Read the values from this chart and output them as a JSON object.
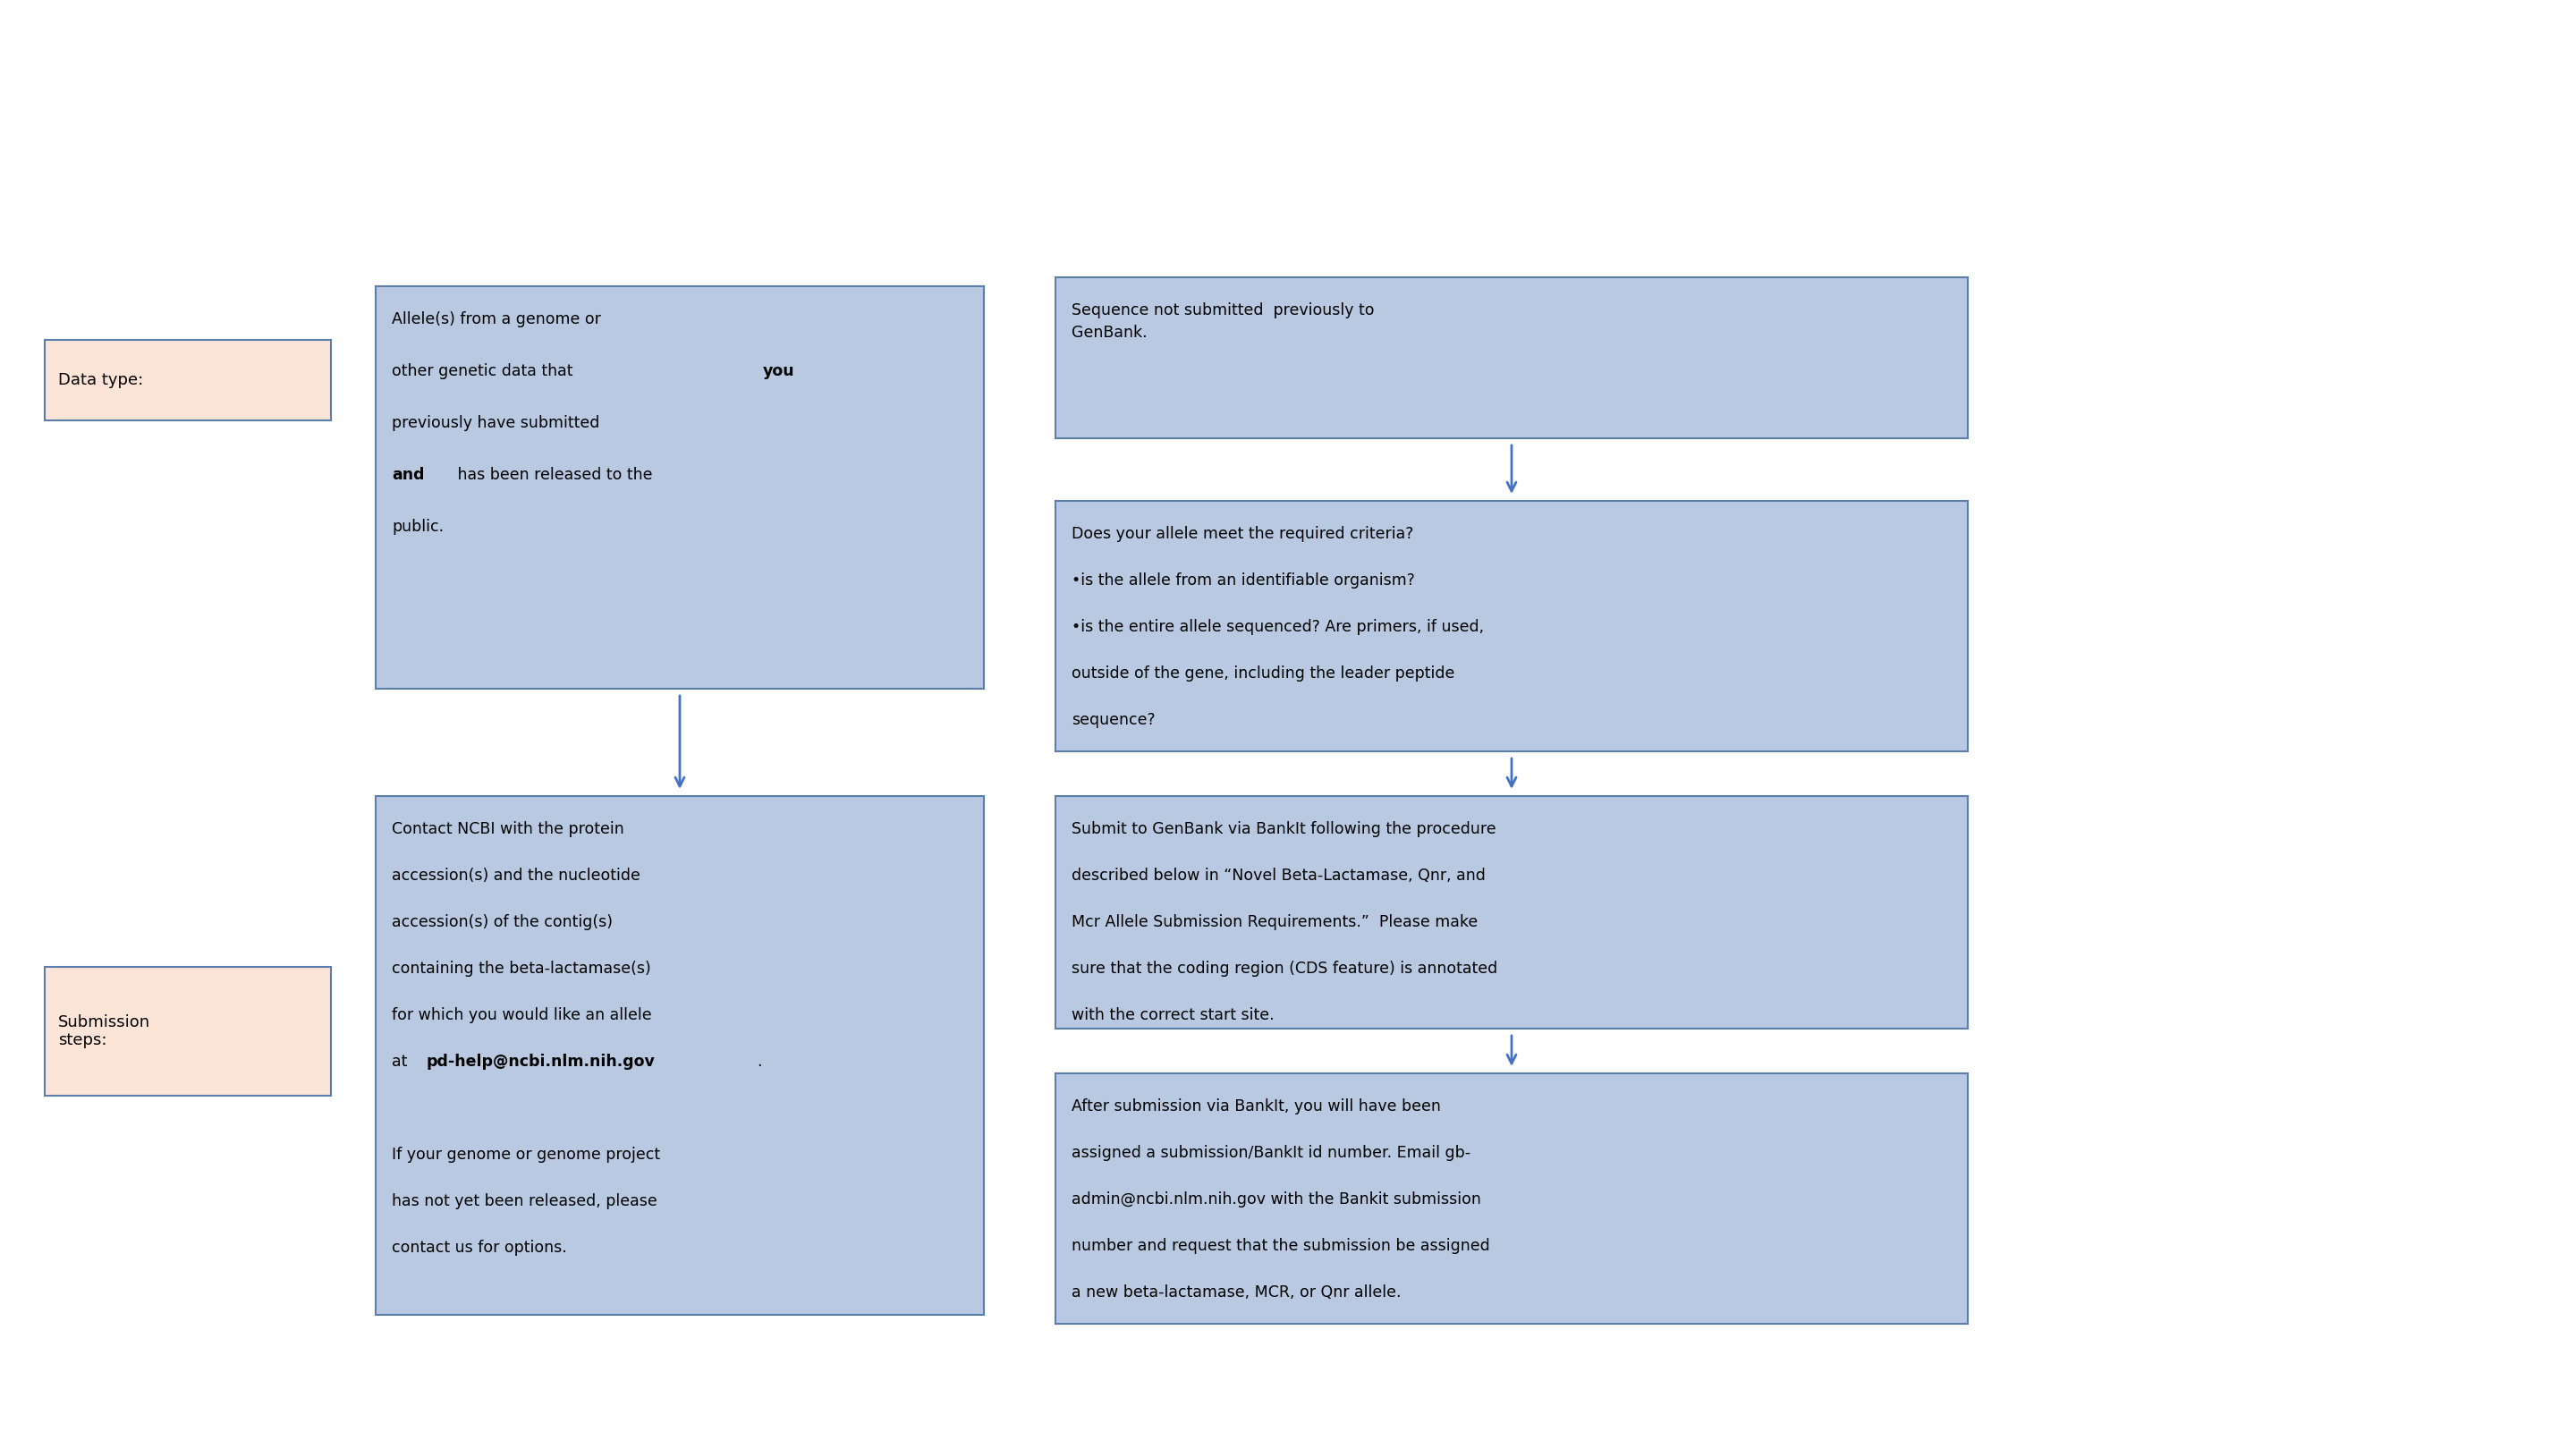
{
  "fig_width": 28.8,
  "fig_height": 16.2,
  "bg_color": "#ffffff",
  "box_blue_bg": "#b8c9e1",
  "box_blue_border": "#5a7fad",
  "box_salmon_bg": "#fce4d6",
  "box_salmon_border": "#5a7fad",
  "arrow_color": "#4472c4",
  "text_color": "#000000",
  "label_left": {
    "data_type": "Data type:",
    "submission_steps": "Submission\nsteps:"
  },
  "col1_boxes": [
    {
      "title_parts": [
        {
          "text": "Allele(s) from a genome or\nother genetic data that ",
          "bold": false
        },
        {
          "text": "you",
          "bold": true
        },
        {
          "text": "\npreviously have submitted\n",
          "bold": false
        },
        {
          "text": "and",
          "bold": true
        },
        {
          "text": " has been released to the\npublic.",
          "bold": false
        }
      ],
      "row": 0
    },
    {
      "title_parts": [
        {
          "text": "Contact NCBI with the protein\naccession(s) and the nucleotide\naccession(s) of the contig(s)\ncontaining the beta-lactamase(s)\nfor which you would like an allele\nat ",
          "bold": false
        },
        {
          "text": "pd-help@ncbi.nlm.nih.gov",
          "bold": true
        },
        {
          "text": ".\n\nIf your genome or genome project\nhas not yet been released, please\ncontact us for options.",
          "bold": false
        }
      ],
      "row": 1
    }
  ],
  "col2_boxes": [
    {
      "title_parts": [
        {
          "text": "Sequence not submitted  previously to\nGenBank.",
          "bold": false
        }
      ],
      "row": 0
    },
    {
      "title_parts": [
        {
          "text": "Does your allele meet the required criteria?\n•is the allele from an identifiable organism?\n•is the entire allele sequenced? Are primers, if used,\noutside of the gene, including the leader peptide\nsequence?",
          "bold": false
        }
      ],
      "row": 1
    },
    {
      "title_parts": [
        {
          "text": "Submit to GenBank via BankIt following the procedure\ndescribed below in “Novel Beta-Lactamase, Qnr, and\nMcr Allele Submission Requirements.”  Please make\nsure that the coding region (CDS feature) is annotated\nwith the correct start site.",
          "bold": false
        }
      ],
      "row": 2
    },
    {
      "title_parts": [
        {
          "text": "After submission via BankIt, you will have been\nassigned a submission/BankIt id number. Email gb-\nadmin@ncbi.nlm.nih.gov with the Bankit submission\nnumber and request that the submission be assigned\na new beta-lactamase, MCR, or Qnr allele.",
          "bold": false
        }
      ],
      "row": 3
    }
  ]
}
